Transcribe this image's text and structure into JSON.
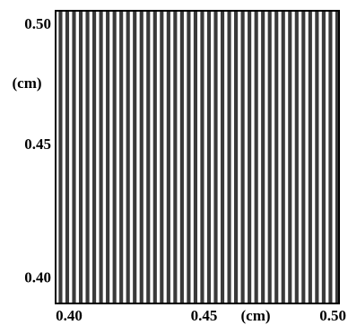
{
  "chart_data": {
    "type": "heatmap",
    "description_free": true,
    "pattern": "vertical-stripes",
    "stripe_count": 42,
    "colors": {
      "light": "#ffffff",
      "dark": "#3a3a3a",
      "border": "#000000"
    },
    "x_axis": {
      "range": [
        0.395,
        0.5
      ],
      "ticks": [
        {
          "value": 0.4,
          "label": "0.40"
        },
        {
          "value": 0.45,
          "label": "0.45"
        },
        {
          "value": 0.5,
          "label": "0.50"
        }
      ],
      "unit": "(cm)"
    },
    "y_axis": {
      "range": [
        0.39,
        0.5
      ],
      "ticks": [
        {
          "value": 0.4,
          "label": "0.40"
        },
        {
          "value": 0.45,
          "label": "0.45"
        },
        {
          "value": 0.5,
          "label": "0.50"
        }
      ],
      "unit": "(cm)"
    }
  }
}
